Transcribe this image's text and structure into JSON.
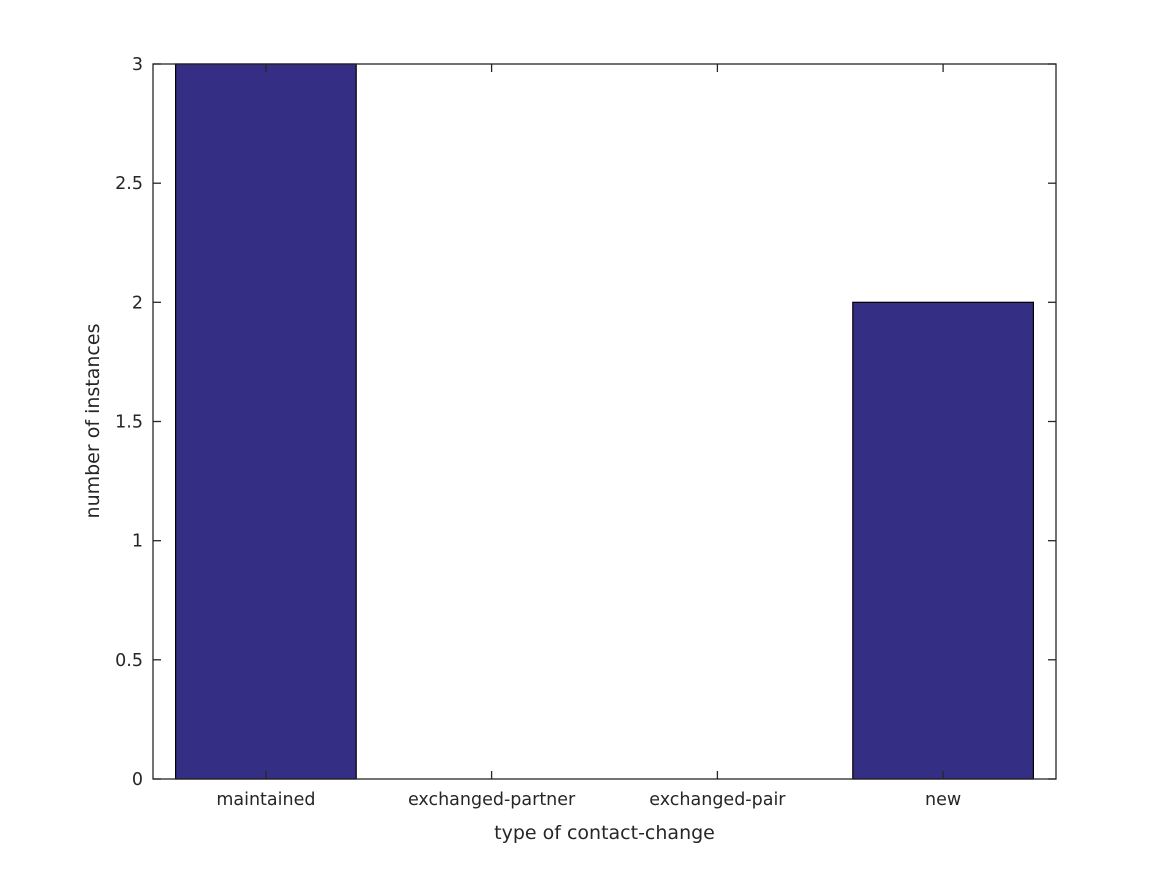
{
  "chart_data": {
    "type": "bar",
    "title": "",
    "categories": [
      "maintained",
      "exchanged-partner",
      "exchanged-pair",
      "new"
    ],
    "values": [
      3,
      0,
      0,
      2
    ],
    "xlabel": "type of contact-change",
    "ylabel": "number of instances",
    "ylim": [
      0,
      3
    ],
    "yticks": [
      0,
      0.5,
      1,
      1.5,
      2,
      2.5,
      3
    ],
    "ytick_labels": [
      "0",
      "0.5",
      "1",
      "1.5",
      "2",
      "2.5",
      "3"
    ],
    "grid": false,
    "legend": null,
    "bar_width_fraction": 0.8,
    "bar_color": "#352e85",
    "bar_edge_color": "#000000",
    "axis_color": "#262626",
    "text_color": "#262626",
    "background_color": "#ffffff",
    "box_on": true,
    "ticks_inward_all_sides": true
  }
}
